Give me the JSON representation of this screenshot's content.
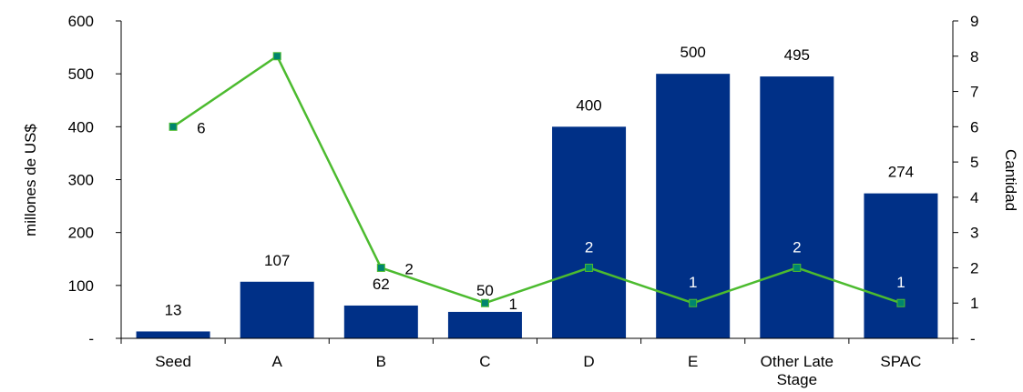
{
  "chart_data": {
    "type": "bar",
    "categories": [
      "Seed",
      "A",
      "B",
      "C",
      "D",
      "E",
      "Other Late Stage",
      "SPAC"
    ],
    "category_lines": [
      [
        "Seed"
      ],
      [
        "A"
      ],
      [
        "B"
      ],
      [
        "C"
      ],
      [
        "D"
      ],
      [
        "E"
      ],
      [
        "Other Late",
        "Stage"
      ],
      [
        "SPAC"
      ]
    ],
    "series": [
      {
        "name": "",
        "kind": "bar",
        "axis": "left",
        "color": "#003087",
        "values": [
          13,
          107,
          62,
          50,
          400,
          500,
          495,
          274
        ]
      },
      {
        "name": "",
        "kind": "line",
        "axis": "right",
        "color": "#4CBB2F",
        "marker_color": "#00856F",
        "values": [
          6,
          8,
          2,
          1,
          2,
          1,
          2,
          1
        ]
      }
    ],
    "bar_labels": [
      "13",
      "107",
      "62",
      "50",
      "400",
      "500",
      "495",
      "274"
    ],
    "line_labels": [
      "6",
      "8",
      "2",
      "1",
      "2",
      "1",
      "2",
      "1"
    ],
    "ylabel": "millones de US$",
    "y2label": "Cantidad",
    "ylim": [
      0,
      600
    ],
    "y2lim": [
      0,
      9
    ],
    "yticks": [
      "-",
      "100",
      "200",
      "300",
      "400",
      "500",
      "600"
    ],
    "y2ticks": [
      "-",
      "1",
      "2",
      "3",
      "4",
      "5",
      "6",
      "7",
      "8",
      "9"
    ],
    "grid": false,
    "legend": "none"
  }
}
